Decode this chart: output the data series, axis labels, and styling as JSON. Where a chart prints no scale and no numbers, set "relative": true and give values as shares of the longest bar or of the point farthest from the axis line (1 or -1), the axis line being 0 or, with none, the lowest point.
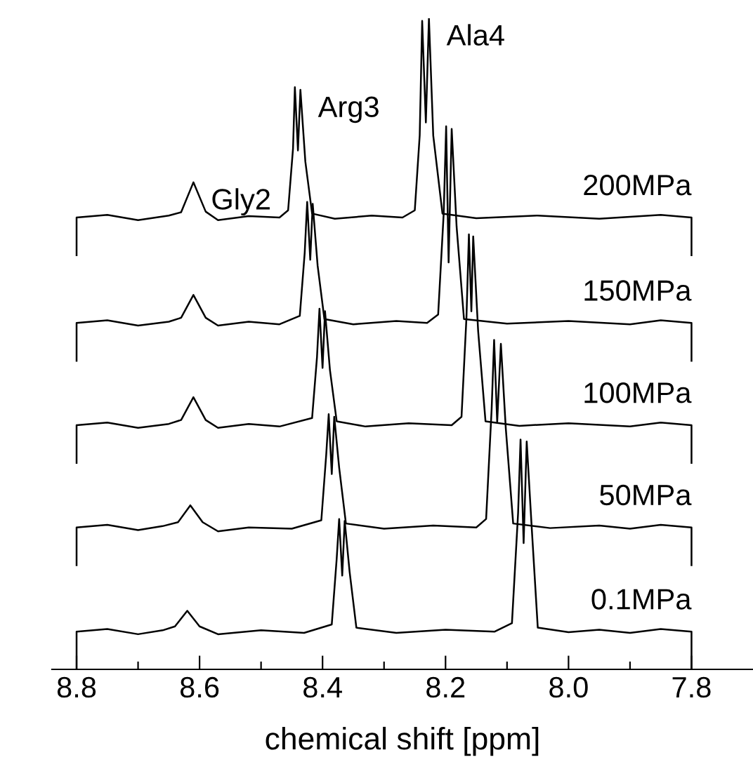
{
  "chart_data": {
    "type": "line",
    "relative": true,
    "xlabel": "chemical shift [ppm]",
    "xlim": [
      8.84,
      7.7
    ],
    "xticks": [
      8.8,
      8.6,
      8.4,
      8.2,
      {
        "value": 8.0,
        "label": "8.0"
      },
      7.8
    ],
    "grid": false,
    "legend": false,
    "marker": "none",
    "line_style": "solid",
    "series": [
      {
        "name": "200MPa",
        "color": "#000000",
        "x": [
          8.8,
          8.8,
          8.75,
          8.7,
          8.65,
          8.63,
          8.61,
          8.59,
          8.57,
          8.52,
          8.47,
          8.456,
          8.448,
          8.445,
          8.44,
          8.436,
          8.428,
          8.417,
          8.38,
          8.32,
          8.27,
          8.25,
          8.242,
          8.238,
          8.232,
          8.227,
          8.22,
          8.205,
          8.15,
          8.05,
          7.95,
          7.85,
          7.8,
          7.8
        ],
        "values": [
          0.636,
          0.694,
          0.698,
          0.69,
          0.697,
          0.702,
          0.748,
          0.703,
          0.69,
          0.696,
          0.694,
          0.705,
          0.8,
          0.894,
          0.797,
          0.89,
          0.78,
          0.7,
          0.692,
          0.697,
          0.694,
          0.705,
          0.82,
          0.996,
          0.84,
          1.0,
          0.82,
          0.7,
          0.693,
          0.697,
          0.692,
          0.698,
          0.694,
          0.636
        ]
      },
      {
        "name": "150MPa",
        "color": "#000000",
        "x": [
          8.8,
          8.8,
          8.75,
          8.7,
          8.65,
          8.63,
          8.61,
          8.59,
          8.57,
          8.52,
          8.47,
          8.437,
          8.429,
          8.425,
          8.42,
          8.416,
          8.408,
          8.397,
          8.35,
          8.28,
          8.23,
          8.212,
          8.203,
          8.199,
          8.195,
          8.19,
          8.182,
          8.17,
          8.1,
          8.0,
          7.9,
          7.85,
          7.8,
          7.8
        ],
        "values": [
          0.474,
          0.532,
          0.536,
          0.528,
          0.534,
          0.54,
          0.575,
          0.54,
          0.528,
          0.534,
          0.53,
          0.543,
          0.64,
          0.718,
          0.629,
          0.715,
          0.62,
          0.538,
          0.53,
          0.535,
          0.532,
          0.545,
          0.7,
          0.834,
          0.625,
          0.83,
          0.68,
          0.538,
          0.531,
          0.535,
          0.53,
          0.536,
          0.532,
          0.474
        ]
      },
      {
        "name": "100MPa",
        "color": "#000000",
        "x": [
          8.8,
          8.8,
          8.75,
          8.7,
          8.65,
          8.63,
          8.61,
          8.59,
          8.57,
          8.52,
          8.47,
          8.417,
          8.409,
          8.405,
          8.4,
          8.396,
          8.388,
          8.377,
          8.33,
          8.26,
          8.19,
          8.174,
          8.166,
          8.162,
          8.158,
          8.155,
          8.147,
          8.135,
          8.08,
          8.0,
          7.9,
          7.85,
          7.8,
          7.8
        ],
        "values": [
          0.317,
          0.375,
          0.379,
          0.371,
          0.377,
          0.383,
          0.418,
          0.383,
          0.371,
          0.377,
          0.373,
          0.386,
          0.48,
          0.554,
          0.463,
          0.55,
          0.46,
          0.381,
          0.373,
          0.378,
          0.375,
          0.388,
          0.54,
          0.668,
          0.55,
          0.665,
          0.52,
          0.381,
          0.374,
          0.378,
          0.373,
          0.379,
          0.375,
          0.317
        ]
      },
      {
        "name": "50MPa",
        "color": "#000000",
        "x": [
          8.8,
          8.8,
          8.75,
          8.7,
          8.66,
          8.635,
          8.615,
          8.595,
          8.57,
          8.52,
          8.45,
          8.402,
          8.394,
          8.39,
          8.385,
          8.381,
          8.373,
          8.362,
          8.3,
          8.22,
          8.15,
          8.134,
          8.125,
          8.121,
          8.116,
          8.11,
          8.102,
          8.09,
          8.03,
          7.95,
          7.9,
          7.85,
          7.8,
          7.8
        ],
        "values": [
          0.16,
          0.218,
          0.222,
          0.214,
          0.22,
          0.226,
          0.252,
          0.226,
          0.212,
          0.218,
          0.216,
          0.229,
          0.33,
          0.392,
          0.3,
          0.388,
          0.31,
          0.224,
          0.216,
          0.221,
          0.218,
          0.231,
          0.4,
          0.506,
          0.38,
          0.5,
          0.37,
          0.224,
          0.217,
          0.221,
          0.216,
          0.222,
          0.218,
          0.16
        ]
      },
      {
        "name": "0.1MPa",
        "color": "#000000",
        "x": [
          8.8,
          8.8,
          8.75,
          8.7,
          8.66,
          8.64,
          8.62,
          8.6,
          8.57,
          8.5,
          8.43,
          8.385,
          8.377,
          8.373,
          8.368,
          8.364,
          8.356,
          8.345,
          8.28,
          8.2,
          8.12,
          8.092,
          8.082,
          8.078,
          8.073,
          8.068,
          8.06,
          8.05,
          8.0,
          7.95,
          7.9,
          7.85,
          7.8,
          7.8
        ],
        "values": [
          0.0,
          0.058,
          0.062,
          0.054,
          0.06,
          0.066,
          0.09,
          0.066,
          0.054,
          0.06,
          0.056,
          0.069,
          0.17,
          0.231,
          0.144,
          0.228,
          0.15,
          0.064,
          0.056,
          0.061,
          0.058,
          0.071,
          0.24,
          0.353,
          0.194,
          0.35,
          0.22,
          0.064,
          0.057,
          0.061,
          0.056,
          0.062,
          0.058,
          0.0
        ]
      }
    ],
    "annotations": [
      {
        "text": "Gly2",
        "x": 8.61,
        "y": 0.748
      },
      {
        "text": "Arg3",
        "x": 8.436,
        "y": 0.89
      },
      {
        "text": "Ala4",
        "x": 8.227,
        "y": 1.0
      }
    ]
  }
}
